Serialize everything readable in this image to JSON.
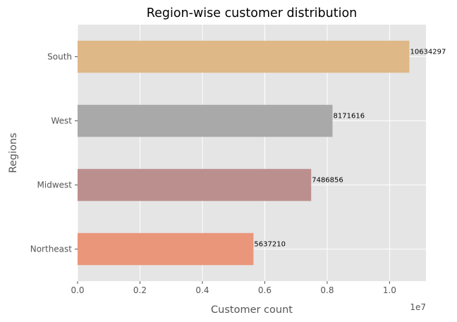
{
  "chart_data": {
    "type": "bar",
    "orientation": "horizontal",
    "title": "Region-wise customer distribution",
    "xlabel": "Customer count",
    "ylabel": "Regions",
    "x_offset_label": "1e7",
    "categories": [
      "Northeast",
      "Midwest",
      "West",
      "South"
    ],
    "values": [
      5637210,
      7486856,
      8171616,
      10634297
    ],
    "data_labels": [
      "5637210",
      "7486856",
      "8171616",
      "10634297"
    ],
    "bar_colors": [
      "#E9967A",
      "#BC8F8F",
      "#A9A9A9",
      "#DEB887"
    ],
    "xlim": [
      0,
      11166012
    ],
    "xticks": [
      0,
      2000000,
      4000000,
      6000000,
      8000000,
      10000000
    ],
    "xtick_labels": [
      "0.0",
      "0.2",
      "0.4",
      "0.6",
      "0.8",
      "1.0"
    ],
    "grid": true,
    "style": {
      "plot_background": "#E5E5E5",
      "grid_color": "#FFFFFF"
    }
  }
}
